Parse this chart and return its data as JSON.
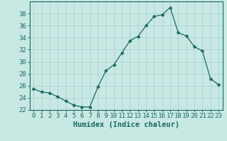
{
  "x": [
    0,
    1,
    2,
    3,
    4,
    5,
    6,
    7,
    8,
    9,
    10,
    11,
    12,
    13,
    14,
    15,
    16,
    17,
    18,
    19,
    20,
    21,
    22,
    23
  ],
  "y": [
    25.5,
    25.0,
    24.8,
    24.2,
    23.5,
    22.8,
    22.5,
    22.5,
    25.8,
    28.5,
    29.5,
    31.5,
    33.5,
    34.2,
    36.0,
    37.5,
    37.8,
    39.0,
    34.8,
    34.3,
    32.5,
    31.8,
    27.2,
    26.2
  ],
  "line_color": "#1a6b5a",
  "marker": "D",
  "marker_size": 2.5,
  "bg_color": "#c8e8e4",
  "grid_color": "#aacfcb",
  "xlabel": "Humidex (Indice chaleur)",
  "xlim": [
    -0.5,
    23.5
  ],
  "ylim": [
    22,
    40
  ],
  "yticks": [
    22,
    24,
    26,
    28,
    30,
    32,
    34,
    36,
    38
  ],
  "xtick_labels": [
    "0",
    "1",
    "2",
    "3",
    "4",
    "5",
    "6",
    "7",
    "8",
    "9",
    "10",
    "11",
    "12",
    "13",
    "14",
    "15",
    "16",
    "17",
    "18",
    "19",
    "20",
    "21",
    "22",
    "23"
  ],
  "tick_color": "#1a6b5a",
  "label_color": "#1a6b5a",
  "spine_color": "#1a6b5a",
  "xlabel_fontsize": 7.5,
  "tick_fontsize": 6.5
}
